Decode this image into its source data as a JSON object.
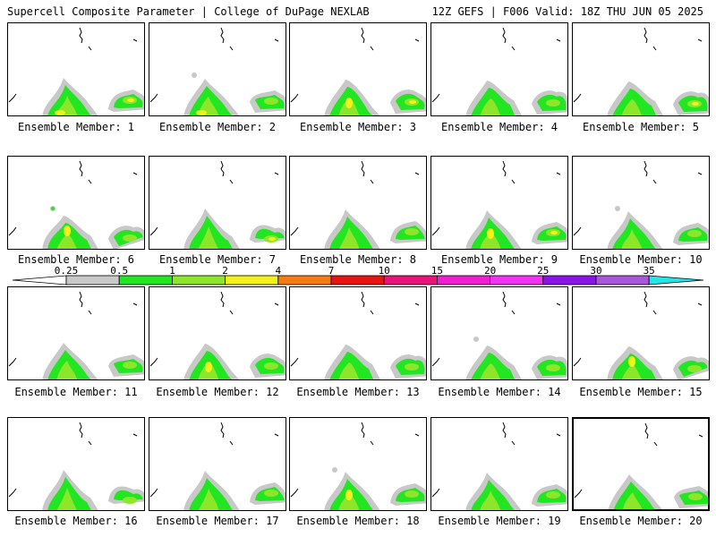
{
  "header": {
    "left_title": "Supercell Composite Parameter | College of DuPage NEXLAB",
    "right_title": "12Z GEFS | F006 Valid: 18Z THU JUN 05 2025"
  },
  "panels": [
    {
      "label": "Ensemble Member: 1"
    },
    {
      "label": "Ensemble Member: 2"
    },
    {
      "label": "Ensemble Member: 3"
    },
    {
      "label": "Ensemble Member: 4"
    },
    {
      "label": "Ensemble Member: 5"
    },
    {
      "label": "Ensemble Member: 6"
    },
    {
      "label": "Ensemble Member: 7"
    },
    {
      "label": "Ensemble Member: 8"
    },
    {
      "label": "Ensemble Member: 9"
    },
    {
      "label": "Ensemble Member: 10"
    },
    {
      "label": "Ensemble Member: 11"
    },
    {
      "label": "Ensemble Member: 12"
    },
    {
      "label": "Ensemble Member: 13"
    },
    {
      "label": "Ensemble Member: 14"
    },
    {
      "label": "Ensemble Member: 15"
    },
    {
      "label": "Ensemble Member: 16"
    },
    {
      "label": "Ensemble Member: 17"
    },
    {
      "label": "Ensemble Member: 18"
    },
    {
      "label": "Ensemble Member: 19"
    },
    {
      "label": "Ensemble Member: 20",
      "selected": true
    }
  ],
  "colorbar": {
    "ticks": [
      "0.25",
      "0.5",
      "1",
      "2",
      "4",
      "7",
      "10",
      "15",
      "20",
      "25",
      "30",
      "35"
    ],
    "colors": [
      "#ffffff",
      "#c8c8c8",
      "#22e622",
      "#8ee62a",
      "#f2f21a",
      "#f47a12",
      "#e81414",
      "#e8147a",
      "#f01ed2",
      "#f232f2",
      "#8a14e8",
      "#a856dc",
      "#22e6e6"
    ]
  },
  "shading": {
    "gray": "#c8c8c8",
    "green": "#22e622",
    "lightgreen": "#8ee62a",
    "yellow": "#f2f21a"
  }
}
